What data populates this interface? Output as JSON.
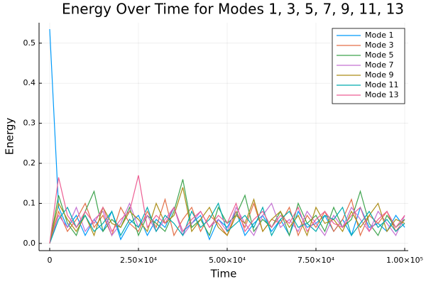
{
  "chart_data": {
    "type": "line",
    "title": "Energy Over Time for Modes 1, 3, 5, 7, 9, 11, 13",
    "xlabel": "Time",
    "ylabel": "Energy",
    "x": [
      0,
      2500,
      5000,
      7500,
      10000,
      12500,
      15000,
      17500,
      20000,
      22500,
      25000,
      27500,
      30000,
      32500,
      35000,
      37500,
      40000,
      42500,
      45000,
      47500,
      50000,
      52500,
      55000,
      57500,
      60000,
      62500,
      65000,
      67500,
      70000,
      72500,
      75000,
      77500,
      80000,
      82500,
      85000,
      87500,
      90000,
      92500,
      95000,
      97500,
      100000
    ],
    "series": [
      {
        "name": "Mode 1",
        "color": "#009afa",
        "values": [
          0.535,
          0.09,
          0.04,
          0.07,
          0.02,
          0.06,
          0.03,
          0.08,
          0.01,
          0.05,
          0.07,
          0.02,
          0.06,
          0.04,
          0.09,
          0.03,
          0.05,
          0.07,
          0.01,
          0.06,
          0.04,
          0.08,
          0.02,
          0.05,
          0.07,
          0.03,
          0.06,
          0.02,
          0.08,
          0.04,
          0.05,
          0.07,
          0.03,
          0.06,
          0.02,
          0.09,
          0.04,
          0.05,
          0.03,
          0.07,
          0.04
        ]
      },
      {
        "name": "Mode 3",
        "color": "#e36f47",
        "values": [
          0.0,
          0.08,
          0.03,
          0.06,
          0.1,
          0.04,
          0.07,
          0.02,
          0.09,
          0.05,
          0.03,
          0.08,
          0.04,
          0.11,
          0.02,
          0.06,
          0.09,
          0.03,
          0.07,
          0.05,
          0.02,
          0.08,
          0.04,
          0.1,
          0.03,
          0.06,
          0.05,
          0.09,
          0.02,
          0.07,
          0.04,
          0.08,
          0.03,
          0.06,
          0.11,
          0.02,
          0.07,
          0.05,
          0.08,
          0.03,
          0.06
        ]
      },
      {
        "name": "Mode 5",
        "color": "#3ea44e",
        "values": [
          0.0,
          0.12,
          0.05,
          0.02,
          0.08,
          0.13,
          0.03,
          0.06,
          0.04,
          0.09,
          0.02,
          0.07,
          0.05,
          0.03,
          0.08,
          0.16,
          0.04,
          0.06,
          0.02,
          0.09,
          0.05,
          0.07,
          0.12,
          0.03,
          0.06,
          0.04,
          0.08,
          0.02,
          0.1,
          0.05,
          0.07,
          0.03,
          0.09,
          0.04,
          0.06,
          0.13,
          0.05,
          0.02,
          0.07,
          0.04,
          0.06
        ]
      },
      {
        "name": "Mode 7",
        "color": "#c371d2",
        "values": [
          0.0,
          0.07,
          0.04,
          0.09,
          0.03,
          0.06,
          0.08,
          0.02,
          0.05,
          0.1,
          0.04,
          0.07,
          0.03,
          0.06,
          0.09,
          0.02,
          0.05,
          0.08,
          0.04,
          0.06,
          0.03,
          0.09,
          0.05,
          0.02,
          0.07,
          0.1,
          0.04,
          0.06,
          0.03,
          0.08,
          0.05,
          0.02,
          0.07,
          0.04,
          0.09,
          0.06,
          0.03,
          0.08,
          0.05,
          0.02,
          0.07
        ]
      },
      {
        "name": "Mode 9",
        "color": "#ac8e18",
        "values": [
          0.0,
          0.1,
          0.06,
          0.03,
          0.07,
          0.02,
          0.09,
          0.05,
          0.04,
          0.08,
          0.06,
          0.03,
          0.1,
          0.05,
          0.07,
          0.14,
          0.03,
          0.06,
          0.09,
          0.04,
          0.02,
          0.07,
          0.05,
          0.11,
          0.03,
          0.06,
          0.08,
          0.04,
          0.07,
          0.02,
          0.09,
          0.05,
          0.06,
          0.03,
          0.08,
          0.04,
          0.07,
          0.1,
          0.03,
          0.06,
          0.05
        ]
      },
      {
        "name": "Mode 11",
        "color": "#00aaae",
        "values": [
          0.0,
          0.06,
          0.09,
          0.04,
          0.07,
          0.03,
          0.05,
          0.08,
          0.02,
          0.06,
          0.04,
          0.09,
          0.03,
          0.07,
          0.05,
          0.02,
          0.08,
          0.04,
          0.06,
          0.1,
          0.03,
          0.05,
          0.07,
          0.04,
          0.09,
          0.02,
          0.06,
          0.08,
          0.04,
          0.05,
          0.03,
          0.07,
          0.06,
          0.09,
          0.02,
          0.05,
          0.08,
          0.04,
          0.06,
          0.03,
          0.05
        ]
      },
      {
        "name": "Mode 13",
        "color": "#ed5e93",
        "values": [
          0.0,
          0.165,
          0.07,
          0.04,
          0.08,
          0.05,
          0.09,
          0.03,
          0.06,
          0.08,
          0.17,
          0.04,
          0.07,
          0.05,
          0.09,
          0.03,
          0.06,
          0.08,
          0.04,
          0.07,
          0.05,
          0.1,
          0.03,
          0.06,
          0.08,
          0.04,
          0.07,
          0.05,
          0.09,
          0.03,
          0.06,
          0.08,
          0.05,
          0.04,
          0.07,
          0.09,
          0.03,
          0.06,
          0.08,
          0.04,
          0.07
        ]
      }
    ],
    "xlim": [
      -3000,
      101000
    ],
    "xticks": [
      0,
      {
        "value": 25000,
        "label": "2.50×10⁴"
      },
      {
        "value": 50000,
        "label": "5.00×10⁴"
      },
      {
        "value": 75000,
        "label": "7.50×10⁴"
      },
      {
        "value": 100000,
        "label": "1.00×10⁵"
      }
    ],
    "ylim": [
      -0.018,
      0.551
    ],
    "yticks": [
      {
        "value": 0,
        "label": "0.0"
      },
      0.1,
      0.2,
      0.3,
      0.4,
      0.5
    ],
    "grid": true,
    "legend": "top-right"
  }
}
